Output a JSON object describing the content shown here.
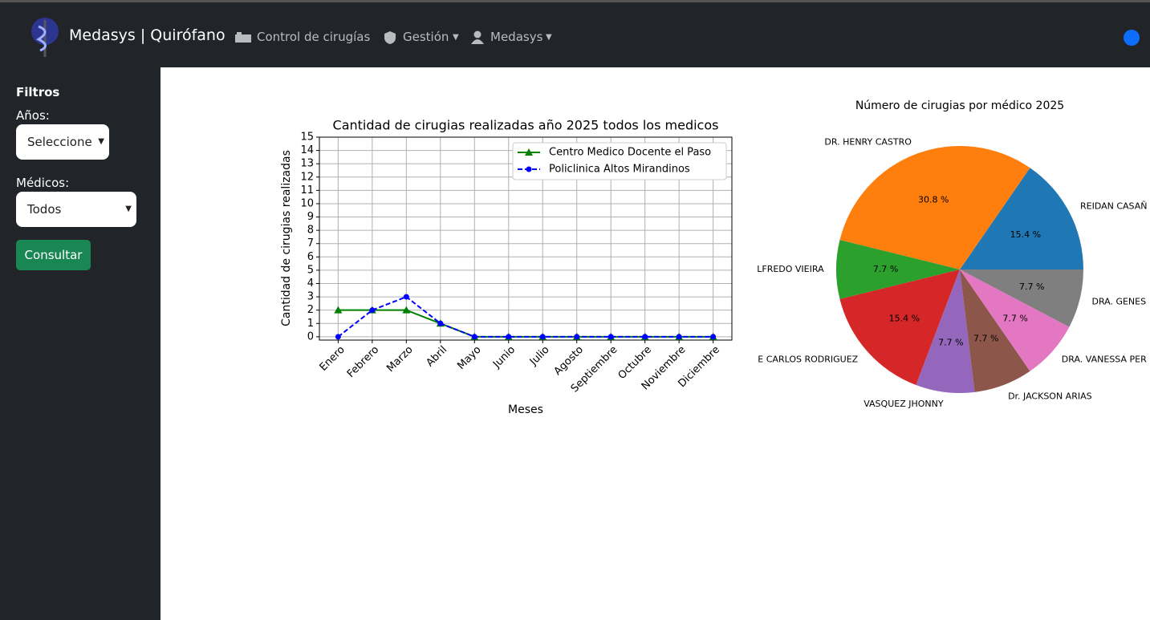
{
  "nav": {
    "brand": "Medasys | Quirófano",
    "items": [
      "Control de cirugías",
      "Gestión",
      "Medasys"
    ]
  },
  "sidebar": {
    "title": "Filtros",
    "fields": [
      {
        "label": "Años:",
        "value": "Seleccione"
      },
      {
        "label": "Médicos:",
        "value": "Todos"
      }
    ],
    "button": "Consultar"
  },
  "chart_data": [
    {
      "type": "line",
      "title": "Cantidad de cirugias realizadas año 2025 todos los medicos",
      "x_label": "Meses",
      "y_label": "Cantidad de cirugias realizadas",
      "categories": [
        "Enero",
        "Febrero",
        "Marzo",
        "Abril",
        "Mayo",
        "Junio",
        "Julio",
        "Agosto",
        "Septiembre",
        "Octubre",
        "Noviembre",
        "Diciembre"
      ],
      "series": [
        {
          "name": "Centro Medico Docente el Paso",
          "color": "#008000",
          "marker": "triangle",
          "dash": false,
          "values": [
            2,
            2,
            2,
            1,
            0,
            0,
            0,
            0,
            0,
            0,
            0,
            0
          ]
        },
        {
          "name": "Policlinica Altos Mirandinos",
          "color": "#0000ff",
          "marker": "circle",
          "dash": true,
          "values": [
            0,
            2,
            3,
            1,
            0,
            0,
            0,
            0,
            0,
            0,
            0,
            0
          ]
        }
      ],
      "ylim": [
        -0.25,
        15
      ],
      "yticks": [
        0,
        1,
        2,
        3,
        4,
        5,
        6,
        7,
        8,
        9,
        10,
        11,
        12,
        13,
        14,
        15
      ],
      "grid": true,
      "legend": "upper right"
    },
    {
      "type": "pie",
      "title": "Número de cirugias por médico 2025",
      "categories": [
        "REIDAN CASAÑ",
        "DR. HENRY CASTRO",
        "LFREDO VIEIRA",
        "E CARLOS RODRIGUEZ",
        "VASQUEZ JHONNY",
        "Dr. JACKSON ARIAS",
        "DRA. VANESSA PER",
        "DRA. GENES"
      ],
      "values": [
        15.4,
        30.8,
        7.7,
        15.4,
        7.7,
        7.7,
        7.7,
        7.7
      ],
      "value_labels": [
        "15.4 %",
        "30.8 %",
        "7.7 %",
        "15.4 %",
        "7.7 %",
        "7.7 %",
        "7.7 %",
        "7.7 %"
      ],
      "colors": [
        "#1f77b4",
        "#ff7f0e",
        "#2ca02c",
        "#d62728",
        "#9467bd",
        "#8c564b",
        "#e377c2",
        "#7f7f7f"
      ]
    }
  ]
}
